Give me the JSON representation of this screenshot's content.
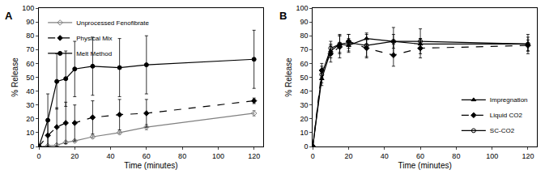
{
  "chart_data": [
    {
      "type": "line",
      "title": "A",
      "x_label": "Time (minutes)",
      "y_label": "% Release",
      "x": [
        0,
        5,
        10,
        15,
        20,
        30,
        45,
        60,
        120
      ],
      "xlim": [
        0,
        125
      ],
      "xticks": [
        0,
        20,
        40,
        60,
        80,
        100,
        120
      ],
      "ylim": [
        0,
        100
      ],
      "yticks": [
        0,
        10,
        20,
        30,
        40,
        50,
        60,
        70,
        80,
        90,
        100
      ],
      "grid": false,
      "legend": "upper left",
      "series": [
        {
          "name": "Unprocessed Fenofibrate",
          "color": "#808080",
          "marker": "diamond-open",
          "line_style": "solid",
          "values": [
            0,
            0.5,
            1,
            3,
            4,
            7,
            10,
            14,
            24
          ],
          "errors": [
            0,
            0.5,
            1,
            1,
            1,
            1,
            1,
            2,
            2
          ]
        },
        {
          "name": "Physical Mix",
          "color": "#000000",
          "marker": "diamond",
          "line_style": "dash",
          "values": [
            0,
            8,
            14,
            17,
            17,
            21,
            23,
            24,
            33
          ],
          "errors": [
            0,
            10,
            14,
            15,
            13,
            12,
            11,
            10,
            2
          ]
        },
        {
          "name": "Melt Method",
          "color": "#000000",
          "marker": "circle",
          "line_style": "solid",
          "values": [
            0,
            19,
            47,
            49,
            56,
            58,
            57,
            59,
            63
          ],
          "errors": [
            0,
            19,
            20,
            20,
            20,
            21,
            21,
            21,
            21
          ]
        }
      ]
    },
    {
      "type": "line",
      "title": "B",
      "x_label": "Time (minutes)",
      "y_label": "% Release",
      "x": [
        0,
        5,
        10,
        15,
        20,
        30,
        45,
        60,
        120
      ],
      "xlim": [
        0,
        125
      ],
      "xticks": [
        0,
        20,
        40,
        60,
        80,
        100,
        120
      ],
      "ylim": [
        0,
        100
      ],
      "yticks": [
        0,
        10,
        20,
        30,
        40,
        50,
        60,
        70,
        80,
        90,
        100
      ],
      "grid": false,
      "legend": "lower right",
      "series": [
        {
          "name": "Impregnation",
          "color": "#000000",
          "marker": "triangle-up",
          "line_style": "solid",
          "values": [
            0,
            49,
            69,
            74,
            73,
            78,
            76,
            74,
            74
          ],
          "errors": [
            0,
            5,
            5,
            6,
            5,
            4,
            5,
            4,
            5
          ]
        },
        {
          "name": "Liquid CO2",
          "color": "#000000",
          "marker": "diamond",
          "line_style": "dash",
          "values": [
            0,
            55,
            67,
            72,
            76,
            71,
            66,
            71,
            73
          ],
          "errors": [
            0,
            5,
            6,
            8,
            5,
            7,
            8,
            7,
            4
          ]
        },
        {
          "name": "SC-CO2",
          "color": "#000000",
          "marker": "circle-open",
          "line_style": "solid",
          "values": [
            0,
            52,
            71,
            74,
            75,
            73,
            76,
            76,
            74
          ],
          "errors": [
            0,
            6,
            5,
            7,
            6,
            8,
            10,
            9,
            7
          ]
        }
      ]
    }
  ]
}
